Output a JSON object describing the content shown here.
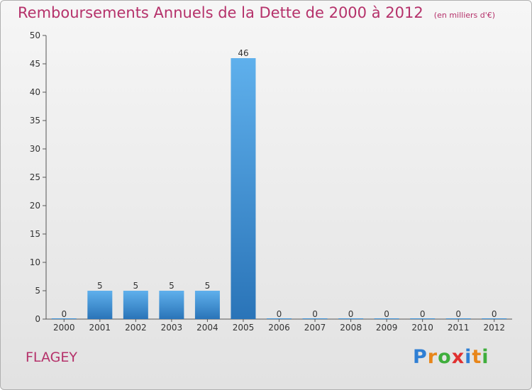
{
  "chart_data": {
    "type": "bar",
    "title": "Remboursements Annuels de la Dette de 2000 à 2012",
    "subtitle": "(en milliers d'€)",
    "categories": [
      "2000",
      "2001",
      "2002",
      "2003",
      "2004",
      "2005",
      "2006",
      "2007",
      "2008",
      "2009",
      "2010",
      "2011",
      "2012"
    ],
    "values": [
      0,
      5,
      5,
      5,
      5,
      46,
      0,
      0,
      0,
      0,
      0,
      0,
      0
    ],
    "value_labels": [
      "0",
      "5",
      "5",
      "5",
      "5",
      "46",
      "0",
      "0",
      "0",
      "0",
      "0",
      "0",
      "0"
    ],
    "ylim": [
      0,
      50
    ],
    "yticks": [
      "0",
      "5",
      "10",
      "15",
      "20",
      "25",
      "30",
      "35",
      "40",
      "45",
      "50"
    ],
    "xlabel": "",
    "ylabel": "",
    "bar_color": "#3a8fd6",
    "grid": false
  },
  "commune": "FLAGEY",
  "brand": {
    "letters": [
      "P",
      "r",
      "o",
      "x",
      "i",
      "t",
      "i"
    ],
    "colors": [
      "#2f7fd4",
      "#e8861a",
      "#3fae3c",
      "#e03030",
      "#2f7fd4",
      "#e8861a",
      "#3fae3c"
    ]
  },
  "colors": {
    "accent": "#b5316a"
  }
}
